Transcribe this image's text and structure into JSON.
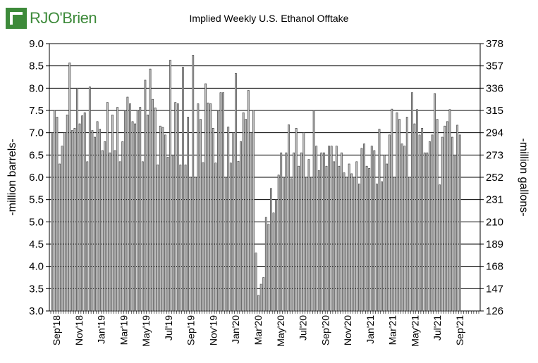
{
  "logo": {
    "text": "RJO'Brien",
    "color": "#3d8a3a"
  },
  "chart_data": {
    "type": "bar",
    "title": "Implied  Weekly U.S. Ethanol Offtake",
    "ylabel_left": "-million barrels-",
    "ylabel_right": "-million gallons-",
    "ylim_left": [
      3.0,
      9.0
    ],
    "ylim_right": [
      126,
      378
    ],
    "left_ticks": [
      "3.0",
      "3.5",
      "4.0",
      "4.5",
      "5.0",
      "5.5",
      "6.0",
      "6.5",
      "7.0",
      "7.5",
      "8.0",
      "8.5",
      "9.0"
    ],
    "right_ticks": [
      "126",
      "147",
      "168",
      "189",
      "210",
      "231",
      "252",
      "273",
      "294",
      "315",
      "336",
      "357",
      "378"
    ],
    "x_tick_labels": [
      "Sep'18",
      "Nov'18",
      "Jan'19",
      "Mar'19",
      "May'19",
      "Jul'19",
      "Sep'19",
      "Nov'19",
      "Jan'20",
      "Mar'20",
      "May'20",
      "Jul'20",
      "Sep'20",
      "Nov'20",
      "Jan'21",
      "Mar'21",
      "May'21",
      "Jul'21",
      "Sep'21"
    ],
    "grid": true,
    "bar_color": "#bfbfbf",
    "values": [
      7.0,
      7.5,
      7.35,
      6.3,
      6.7,
      7.0,
      7.4,
      8.57,
      7.05,
      7.1,
      8.0,
      7.2,
      7.38,
      7.45,
      6.35,
      8.03,
      7.05,
      6.9,
      7.25,
      7.08,
      6.6,
      6.8,
      7.68,
      6.55,
      7.4,
      6.6,
      7.57,
      6.35,
      6.8,
      7.5,
      7.8,
      7.65,
      7.25,
      7.2,
      7.5,
      7.57,
      6.35,
      8.18,
      7.4,
      8.43,
      7.75,
      7.56,
      6.28,
      7.15,
      7.12,
      6.95,
      6.45,
      8.63,
      6.5,
      7.68,
      7.65,
      6.28,
      8.47,
      6.28,
      7.35,
      6.0,
      8.74,
      6.0,
      7.65,
      7.3,
      6.33,
      8.1,
      7.67,
      7.65,
      7.1,
      6.32,
      7.5,
      7.9,
      7.9,
      6.0,
      7.13,
      6.32,
      7.0,
      8.33,
      6.36,
      6.8,
      7.45,
      7.3,
      7.95,
      7.0,
      7.5,
      4.3,
      3.35,
      3.6,
      3.75,
      5.1,
      4.95,
      5.75,
      5.2,
      5.5,
      6.05,
      6.55,
      6.0,
      6.55,
      7.18,
      5.97,
      6.55,
      7.1,
      6.25,
      6.55,
      7.0,
      6.0,
      6.4,
      6.0,
      7.5,
      6.7,
      6.15,
      6.55,
      6.55,
      6.25,
      6.7,
      6.7,
      6.35,
      6.7,
      6.25,
      6.55,
      6.1,
      6.0,
      6.3,
      6.08,
      6.0,
      6.35,
      5.85,
      6.65,
      6.75,
      6.25,
      6.2,
      6.7,
      6.6,
      5.85,
      7.08,
      5.9,
      6.5,
      6.3,
      6.95,
      7.53,
      6.0,
      7.45,
      7.3,
      6.75,
      6.7,
      7.35,
      6.0,
      7.9,
      7.2,
      7.52,
      6.95,
      7.1,
      6.55,
      6.55,
      6.8,
      6.95,
      7.88,
      7.3,
      5.83,
      6.9,
      7.15,
      7.25,
      7.52,
      6.9,
      6.5,
      7.17,
      6.95
    ]
  }
}
